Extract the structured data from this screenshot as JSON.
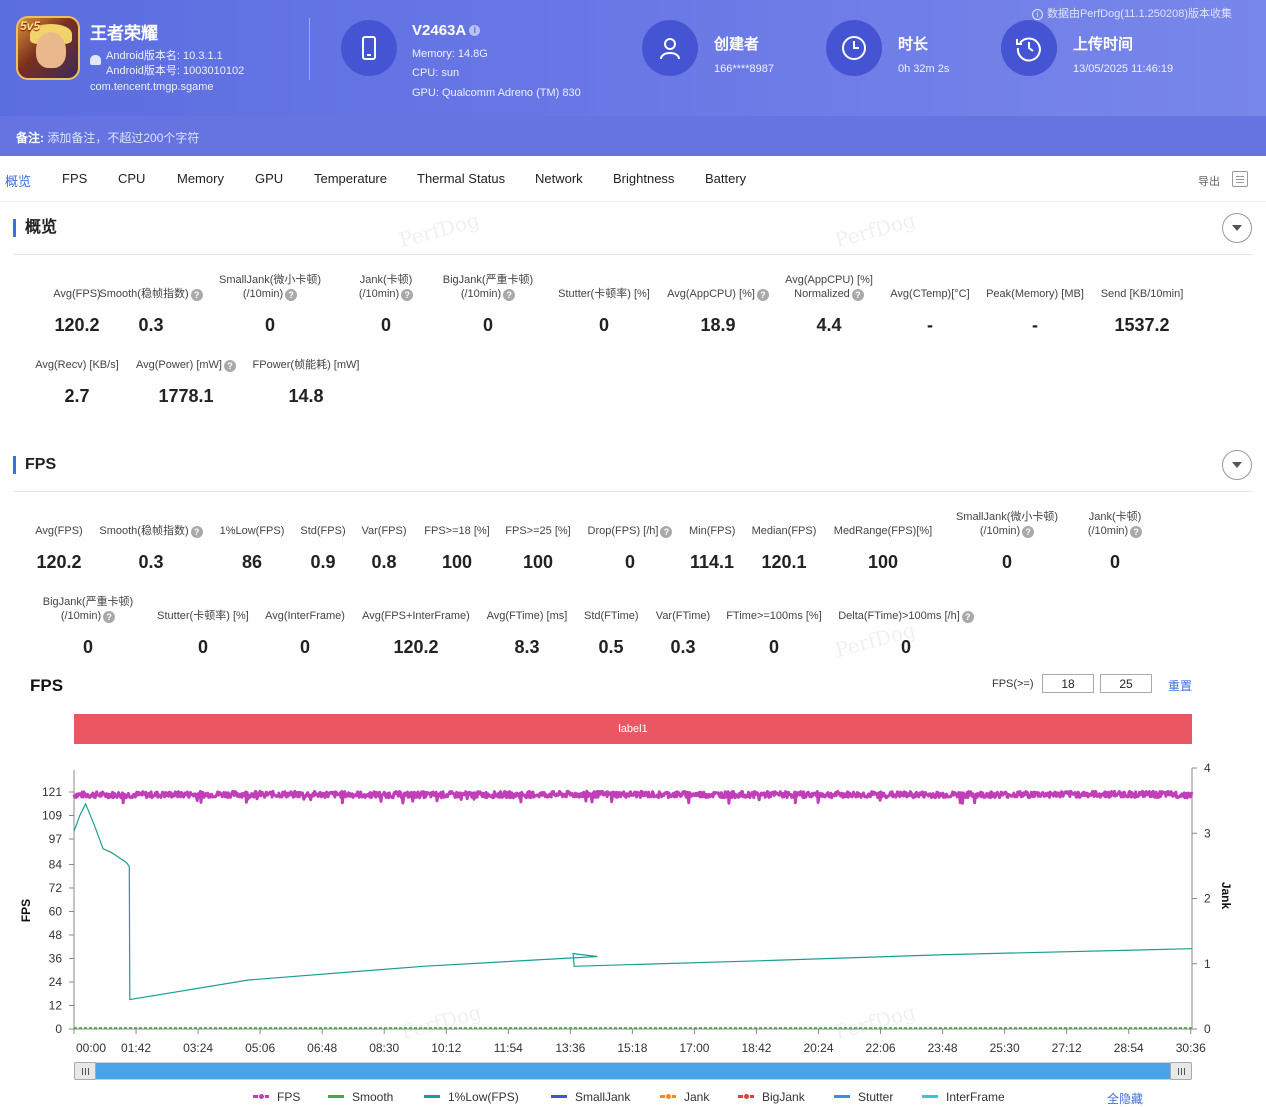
{
  "header": {
    "app_name": "王者荣耀",
    "app_icon_tag": "5v5",
    "android_version_name": "Android版本名: 10.3.1.1",
    "android_version_code": "Android版本号: 1003010102",
    "package": "com.tencent.tmgp.sgame",
    "device_name": "V2463A",
    "memory": "Memory: 14.8G",
    "cpu": "CPU: sun",
    "gpu": "GPU: Qualcomm Adreno (TM) 830",
    "creator_label": "创建者",
    "creator_value": "166****8987",
    "duration_label": "时长",
    "duration_value": "0h 32m 2s",
    "upload_label": "上传时间",
    "upload_value": "13/05/2025 11:46:19",
    "data_source": "数据由PerfDog(11.1.250208)版本收集",
    "note_label": "备注:",
    "note_placeholder": "添加备注，不超过200个字符"
  },
  "tabs": [
    "概览",
    "FPS",
    "CPU",
    "Memory",
    "GPU",
    "Temperature",
    "Thermal Status",
    "Network",
    "Brightness",
    "Battery"
  ],
  "export_label": "导出",
  "watermark": "PerfDog",
  "overview": {
    "title": "概览",
    "metrics": [
      {
        "l1": "Avg(FPS)",
        "l2": "",
        "v": "120.2"
      },
      {
        "l1": "Smooth(稳帧指数)",
        "l2": "",
        "v": "0.3"
      },
      {
        "l1": "SmallJank(微小卡顿)",
        "l2": "(/10min)",
        "v": "0"
      },
      {
        "l1": "Jank(卡顿)",
        "l2": "(/10min)",
        "v": "0"
      },
      {
        "l1": "BigJank(严重卡顿)",
        "l2": "(/10min)",
        "v": "0"
      },
      {
        "l1": "Stutter(卡顿率) [%]",
        "l2": "",
        "v": "0"
      },
      {
        "l1": "Avg(AppCPU) [%]",
        "l2": "",
        "v": "18.9"
      },
      {
        "l1": "Avg(AppCPU) [%]",
        "l2": "Normalized",
        "v": "4.4"
      },
      {
        "l1": "Avg(CTemp)[°C]",
        "l2": "",
        "v": "-"
      },
      {
        "l1": "Peak(Memory) [MB]",
        "l2": "",
        "v": "-"
      },
      {
        "l1": "Send [KB/10min]",
        "l2": "",
        "v": "1537.2"
      },
      {
        "l1": "Avg(Recv) [KB/s]",
        "l2": "",
        "v": "2.7"
      },
      {
        "l1": "Avg(Power) [mW]",
        "l2": "",
        "v": "1778.1"
      },
      {
        "l1": "FPower(帧能耗) [mW]",
        "l2": "",
        "v": "14.8"
      }
    ]
  },
  "fps_section": {
    "title": "FPS",
    "metrics": [
      {
        "l1": "Avg(FPS)",
        "l2": "",
        "v": "120.2"
      },
      {
        "l1": "Smooth(稳帧指数)",
        "l2": "",
        "v": "0.3"
      },
      {
        "l1": "1%Low(FPS)",
        "l2": "",
        "v": "86"
      },
      {
        "l1": "Std(FPS)",
        "l2": "",
        "v": "0.9"
      },
      {
        "l1": "Var(FPS)",
        "l2": "",
        "v": "0.8"
      },
      {
        "l1": "FPS>=18 [%]",
        "l2": "",
        "v": "100"
      },
      {
        "l1": "FPS>=25 [%]",
        "l2": "",
        "v": "100"
      },
      {
        "l1": "Drop(FPS) [/h]",
        "l2": "",
        "v": "0"
      },
      {
        "l1": "Min(FPS)",
        "l2": "",
        "v": "114.1"
      },
      {
        "l1": "Median(FPS)",
        "l2": "",
        "v": "120.1"
      },
      {
        "l1": "MedRange(FPS)[%]",
        "l2": "",
        "v": "100"
      },
      {
        "l1": "SmallJank(微小卡顿)",
        "l2": "(/10min)",
        "v": "0"
      },
      {
        "l1": "Jank(卡顿)",
        "l2": "(/10min)",
        "v": "0"
      },
      {
        "l1": "BigJank(严重卡顿)",
        "l2": "(/10min)",
        "v": "0"
      },
      {
        "l1": "Stutter(卡顿率) [%]",
        "l2": "",
        "v": "0"
      },
      {
        "l1": "Avg(InterFrame)",
        "l2": "",
        "v": "0"
      },
      {
        "l1": "Avg(FPS+InterFrame)",
        "l2": "",
        "v": "120.2"
      },
      {
        "l1": "Avg(FTime) [ms]",
        "l2": "",
        "v": "8.3"
      },
      {
        "l1": "Std(FTime)",
        "l2": "",
        "v": "0.5"
      },
      {
        "l1": "Var(FTime)",
        "l2": "",
        "v": "0.3"
      },
      {
        "l1": "FTime>=100ms [%]",
        "l2": "",
        "v": "0"
      },
      {
        "l1": "Delta(FTime)>100ms [/h]",
        "l2": "",
        "v": "0"
      }
    ]
  },
  "chart": {
    "title": "FPS",
    "threshold_label": "FPS(>=)",
    "threshold_1": "18",
    "threshold_2": "25",
    "reset_label": "重置",
    "label_bar": "label1",
    "hide_all_label": "全隐藏",
    "colors": {
      "FPS": "#c03fb8",
      "Smooth": "#3aab52",
      "1%Low(FPS)": "#1a9e95",
      "SmallJank": "#4a4fd6",
      "Jank": "#f08a2e",
      "BigJank": "#e04040",
      "Stutter": "#3d8fe0",
      "InterFrame": "#35c5e0"
    }
  },
  "chart_data": {
    "type": "line",
    "xlabel": "",
    "ylabel": "FPS",
    "y2label": "Jank",
    "x_ticks": [
      "00:00",
      "01:42",
      "03:24",
      "05:06",
      "06:48",
      "08:30",
      "10:12",
      "11:54",
      "13:36",
      "15:18",
      "17:00",
      "18:42",
      "20:24",
      "22:06",
      "23:48",
      "25:30",
      "27:12",
      "28:54",
      "30:36"
    ],
    "y_ticks": [
      0,
      12,
      24,
      36,
      48,
      60,
      72,
      84,
      97,
      109,
      121
    ],
    "y2_ticks": [
      0,
      1,
      2,
      3,
      4
    ],
    "ylim": [
      0,
      121
    ],
    "y2lim": [
      0,
      4
    ],
    "x_range_seconds": [
      0,
      1922
    ],
    "series": [
      {
        "name": "FPS",
        "points": [
          [
            0,
            120
          ],
          [
            100,
            120
          ],
          [
            300,
            120.3
          ],
          [
            600,
            120
          ],
          [
            900,
            120.2
          ],
          [
            1200,
            120.1
          ],
          [
            1500,
            120
          ],
          [
            1800,
            120.3
          ],
          [
            1922,
            120
          ]
        ]
      },
      {
        "name": "Smooth",
        "points": [
          [
            0,
            0
          ],
          [
            1922,
            0
          ]
        ]
      },
      {
        "name": "1%Low(FPS)",
        "points": [
          [
            0,
            101
          ],
          [
            10,
            109
          ],
          [
            20,
            115
          ],
          [
            35,
            104
          ],
          [
            50,
            92
          ],
          [
            65,
            90
          ],
          [
            80,
            87
          ],
          [
            90,
            85
          ],
          [
            95,
            83
          ],
          [
            96,
            15
          ],
          [
            300,
            25
          ],
          [
            600,
            32
          ],
          [
            900,
            37
          ],
          [
            858,
            38.5
          ],
          [
            860,
            32
          ],
          [
            1200,
            35
          ],
          [
            1500,
            38
          ],
          [
            1922,
            41
          ]
        ]
      },
      {
        "name": "SmallJank",
        "points": [
          [
            0,
            0
          ],
          [
            1922,
            0
          ]
        ]
      },
      {
        "name": "Jank",
        "points": [
          [
            0,
            0
          ],
          [
            1922,
            0
          ]
        ]
      },
      {
        "name": "BigJank",
        "points": [
          [
            0,
            0
          ],
          [
            1922,
            0
          ]
        ]
      },
      {
        "name": "Stutter",
        "points": [
          [
            0,
            0
          ],
          [
            1922,
            0
          ]
        ]
      },
      {
        "name": "InterFrame",
        "points": [
          [
            0,
            0
          ],
          [
            1922,
            0
          ]
        ]
      }
    ]
  }
}
